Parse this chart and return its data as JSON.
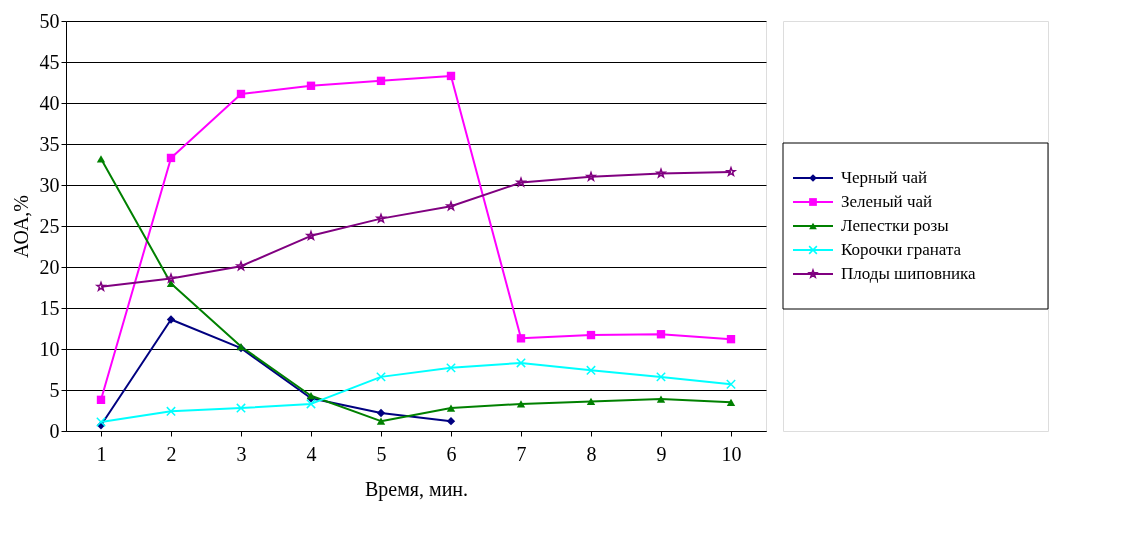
{
  "chart_data": {
    "type": "line",
    "xlabel": "Время, мин.",
    "ylabel": "АОА,%",
    "categories": [
      "1",
      "2",
      "3",
      "4",
      "5",
      "6",
      "7",
      "8",
      "9",
      "10"
    ],
    "ylim": [
      0,
      50
    ],
    "yticks": [
      0,
      5,
      10,
      15,
      20,
      25,
      30,
      35,
      40,
      45,
      50
    ],
    "grid": "y",
    "legend": "right",
    "series": [
      {
        "name": "Черный чай",
        "color": "#000080",
        "marker": "diamond",
        "values": [
          0.7,
          13.6,
          10.1,
          4.0,
          2.2,
          1.2,
          null,
          null,
          null,
          null
        ]
      },
      {
        "name": "Зеленый чай",
        "color": "#ff00ff",
        "marker": "square",
        "values": [
          3.8,
          33.3,
          41.1,
          42.1,
          42.7,
          43.3,
          11.3,
          11.7,
          11.8,
          11.2
        ]
      },
      {
        "name": "Лепестки розы",
        "color": "#008000",
        "marker": "triangle",
        "values": [
          33.2,
          18.0,
          10.3,
          4.3,
          1.2,
          2.8,
          3.3,
          3.6,
          3.9,
          3.5
        ]
      },
      {
        "name": "Корочки граната",
        "color": "#00ffff",
        "marker": "cross",
        "values": [
          1.1,
          2.4,
          2.8,
          3.3,
          6.6,
          7.7,
          8.3,
          7.4,
          6.6,
          5.7
        ]
      },
      {
        "name": "Плоды шиповника",
        "color": "#800080",
        "marker": "star",
        "values": [
          17.6,
          18.6,
          20.1,
          23.8,
          25.9,
          27.4,
          30.3,
          31.0,
          31.4,
          31.6
        ]
      }
    ]
  }
}
